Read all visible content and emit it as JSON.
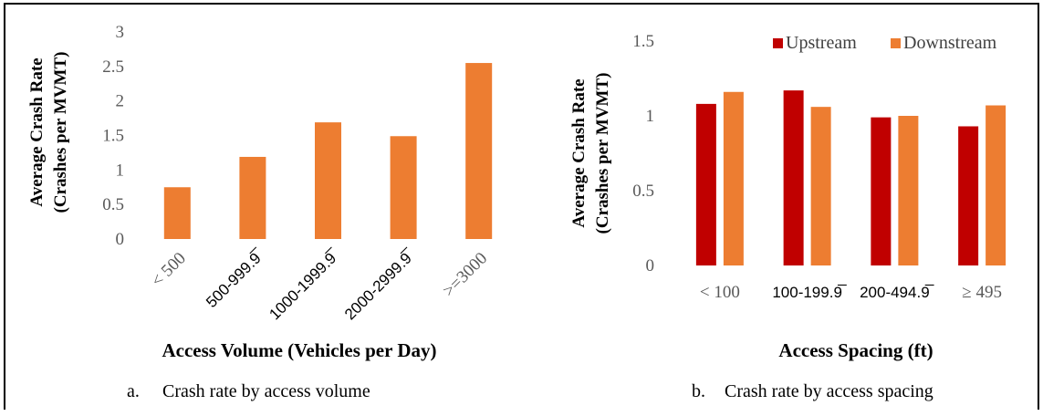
{
  "chart_data": [
    {
      "type": "bar",
      "ylabel_line1": "Average Crash Rate",
      "ylabel_line2": "(Crashes per MVMT)",
      "xlabel": "Access Volume (Vehicles per Day)",
      "caption_letter": "a.",
      "caption": "Crash rate by access volume",
      "categories": [
        "< 500",
        "500-999.9̅",
        "1000-1999.9̅",
        "2000-2999.9̅",
        ">=3000"
      ],
      "values": [
        0.75,
        1.19,
        1.69,
        1.49,
        2.55
      ],
      "ylim": [
        0,
        3
      ],
      "yticks": [
        "0",
        "0.5",
        "1",
        "1.5",
        "2",
        "2.5",
        "3"
      ],
      "grid": false,
      "bar_color": "#ED7D31"
    },
    {
      "type": "bar",
      "ylabel_line1": "Average Crash Rate",
      "ylabel_line2": "(Crashes per MVMT)",
      "xlabel": "Access Spacing (ft)",
      "caption_letter": "b.",
      "caption": "Crash rate by access spacing",
      "categories": [
        "< 100",
        "100-199.9̅",
        "200-494.9̅",
        "≥ 495"
      ],
      "series": [
        {
          "name": "Upstream",
          "values": [
            1.08,
            1.17,
            0.99,
            0.93
          ],
          "color": "#C00000"
        },
        {
          "name": "Downstream",
          "values": [
            1.16,
            1.06,
            1.0,
            1.07
          ],
          "color": "#ED7D31"
        }
      ],
      "ylim": [
        0,
        1.5
      ],
      "yticks": [
        "0",
        "0.5",
        "1",
        "1.5"
      ],
      "legend_position": "top",
      "grid": false
    }
  ]
}
